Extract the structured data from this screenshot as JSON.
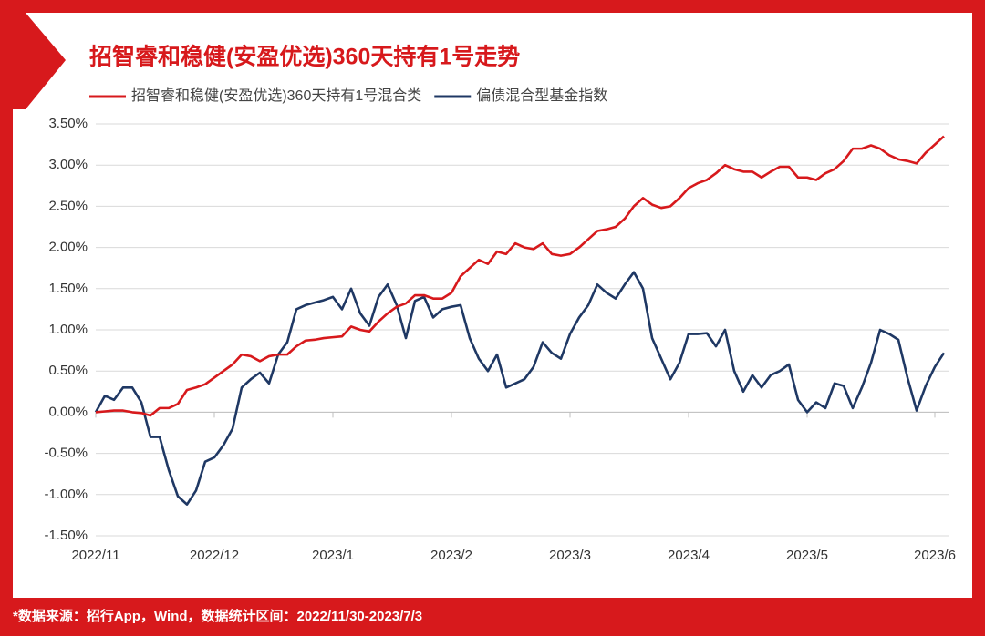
{
  "chart_data": {
    "type": "line",
    "title": "招智睿和稳健(安盈优选)360天持有1号走势",
    "footnote": "*数据来源：招行App，Wind，数据统计区间：2022/11/30-2023/7/3",
    "categories": [
      "2022/11",
      null,
      null,
      null,
      null,
      null,
      null,
      null,
      null,
      null,
      null,
      null,
      null,
      "2022/12",
      null,
      null,
      null,
      null,
      null,
      null,
      null,
      null,
      null,
      null,
      null,
      null,
      "2023/1",
      null,
      null,
      null,
      null,
      null,
      null,
      null,
      null,
      null,
      null,
      null,
      null,
      "2023/2",
      null,
      null,
      null,
      null,
      null,
      null,
      null,
      null,
      null,
      null,
      null,
      null,
      "2023/3",
      null,
      null,
      null,
      null,
      null,
      null,
      null,
      null,
      null,
      null,
      null,
      null,
      "2023/4",
      null,
      null,
      null,
      null,
      null,
      null,
      null,
      null,
      null,
      null,
      null,
      null,
      "2023/5",
      null,
      null,
      null,
      null,
      null,
      null,
      null,
      null,
      null,
      null,
      null,
      null,
      null,
      "2023/6",
      null
    ],
    "series": [
      {
        "name": "招智睿和稳健(安盈优选)360天持有1号混合类",
        "color": "#d7191c",
        "values": [
          0,
          0.01,
          0.02,
          0.02,
          0,
          -0.01,
          -0.04,
          0.05,
          0.05,
          0.1,
          0.27,
          0.3,
          0.34,
          0.42,
          0.5,
          0.58,
          0.7,
          0.68,
          0.62,
          0.68,
          0.7,
          0.7,
          0.8,
          0.87,
          0.88,
          0.9,
          0.91,
          0.92,
          1.04,
          1.0,
          0.98,
          1.1,
          1.2,
          1.28,
          1.32,
          1.42,
          1.42,
          1.38,
          1.38,
          1.45,
          1.65,
          1.75,
          1.85,
          1.8,
          1.95,
          1.92,
          2.05,
          2.0,
          1.98,
          2.05,
          1.92,
          1.9,
          1.92,
          2.0,
          2.1,
          2.2,
          2.22,
          2.25,
          2.35,
          2.5,
          2.6,
          2.52,
          2.48,
          2.5,
          2.6,
          2.72,
          2.78,
          2.82,
          2.9,
          3.0,
          2.95,
          2.92,
          2.92,
          2.85,
          2.92,
          2.98,
          2.98,
          2.85,
          2.85,
          2.82,
          2.9,
          2.95,
          3.05,
          3.2,
          3.2,
          3.24,
          3.2,
          3.12,
          3.07,
          3.05,
          3.02,
          3.15,
          3.25,
          3.35
        ]
      },
      {
        "name": "偏债混合型基金指数",
        "color": "#1f3864",
        "values": [
          0,
          0.2,
          0.15,
          0.3,
          0.3,
          0.12,
          -0.3,
          -0.3,
          -0.7,
          -1.02,
          -1.12,
          -0.95,
          -0.6,
          -0.55,
          -0.4,
          -0.2,
          0.3,
          0.4,
          0.48,
          0.35,
          0.7,
          0.85,
          1.25,
          1.3,
          1.33,
          1.36,
          1.4,
          1.25,
          1.5,
          1.2,
          1.05,
          1.4,
          1.55,
          1.3,
          0.9,
          1.35,
          1.4,
          1.15,
          1.25,
          1.28,
          1.3,
          0.9,
          0.65,
          0.5,
          0.7,
          0.3,
          0.35,
          0.4,
          0.55,
          0.85,
          0.72,
          0.65,
          0.95,
          1.15,
          1.3,
          1.55,
          1.45,
          1.38,
          1.55,
          1.7,
          1.5,
          0.9,
          0.65,
          0.4,
          0.6,
          0.95,
          0.95,
          0.96,
          0.8,
          1.0,
          0.5,
          0.25,
          0.45,
          0.3,
          0.45,
          0.5,
          0.58,
          0.15,
          0.0,
          0.12,
          0.05,
          0.35,
          0.32,
          0.05,
          0.3,
          0.6,
          1.0,
          0.95,
          0.88,
          0.42,
          0.02,
          0.32,
          0.55,
          0.72
        ]
      }
    ],
    "ylim": [
      -1.5,
      3.5
    ],
    "yticks": [
      {
        "value": -1.5,
        "label": "-1.50%"
      },
      {
        "value": -1,
        "label": "-1.00%"
      },
      {
        "value": -0.5,
        "label": "-0.50%"
      },
      {
        "value": 0,
        "label": "0.00%"
      },
      {
        "value": 0.5,
        "label": "0.50%"
      },
      {
        "value": 1,
        "label": "1.00%"
      },
      {
        "value": 1.5,
        "label": "1.50%"
      },
      {
        "value": 2,
        "label": "2.00%"
      },
      {
        "value": 2.5,
        "label": "2.50%"
      },
      {
        "value": 3,
        "label": "3.00%"
      },
      {
        "value": 3.5,
        "label": "3.50%"
      }
    ],
    "grid": true
  }
}
